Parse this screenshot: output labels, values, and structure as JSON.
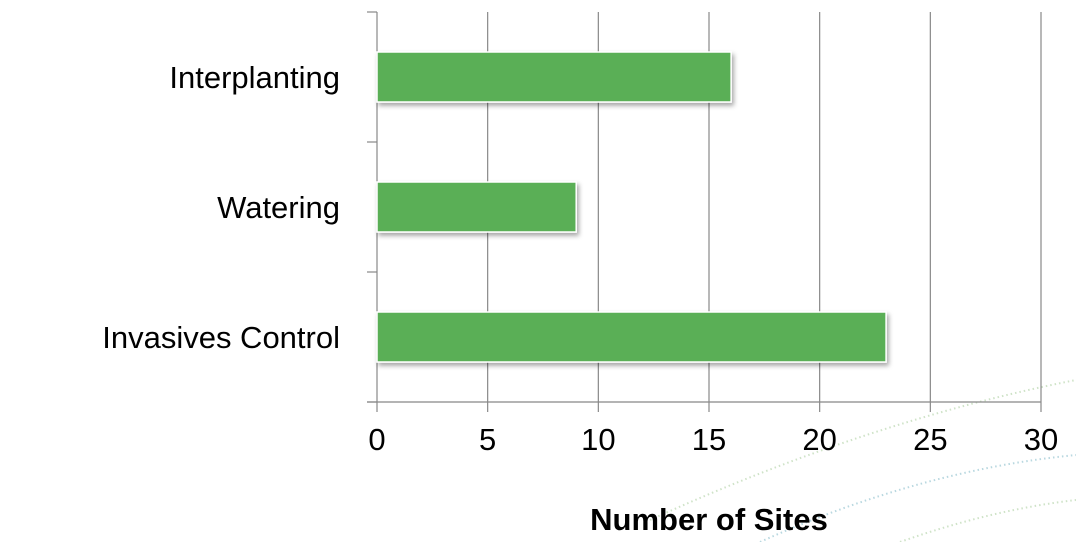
{
  "chart_data": {
    "type": "bar",
    "orientation": "horizontal",
    "categories": [
      "Interplanting",
      "Watering",
      "Invasives Control"
    ],
    "values": [
      16,
      9,
      23
    ],
    "xlabel": "Number of Sites",
    "ylabel": "",
    "xlim": [
      0,
      30
    ],
    "xticks": [
      "0",
      "5",
      "10",
      "15",
      "20",
      "25",
      "30"
    ],
    "grid": "vertical",
    "legend": "none",
    "bar_color": "#5aaf56",
    "bar_edge_color": "#ffffff",
    "grid_color": "#888888"
  }
}
